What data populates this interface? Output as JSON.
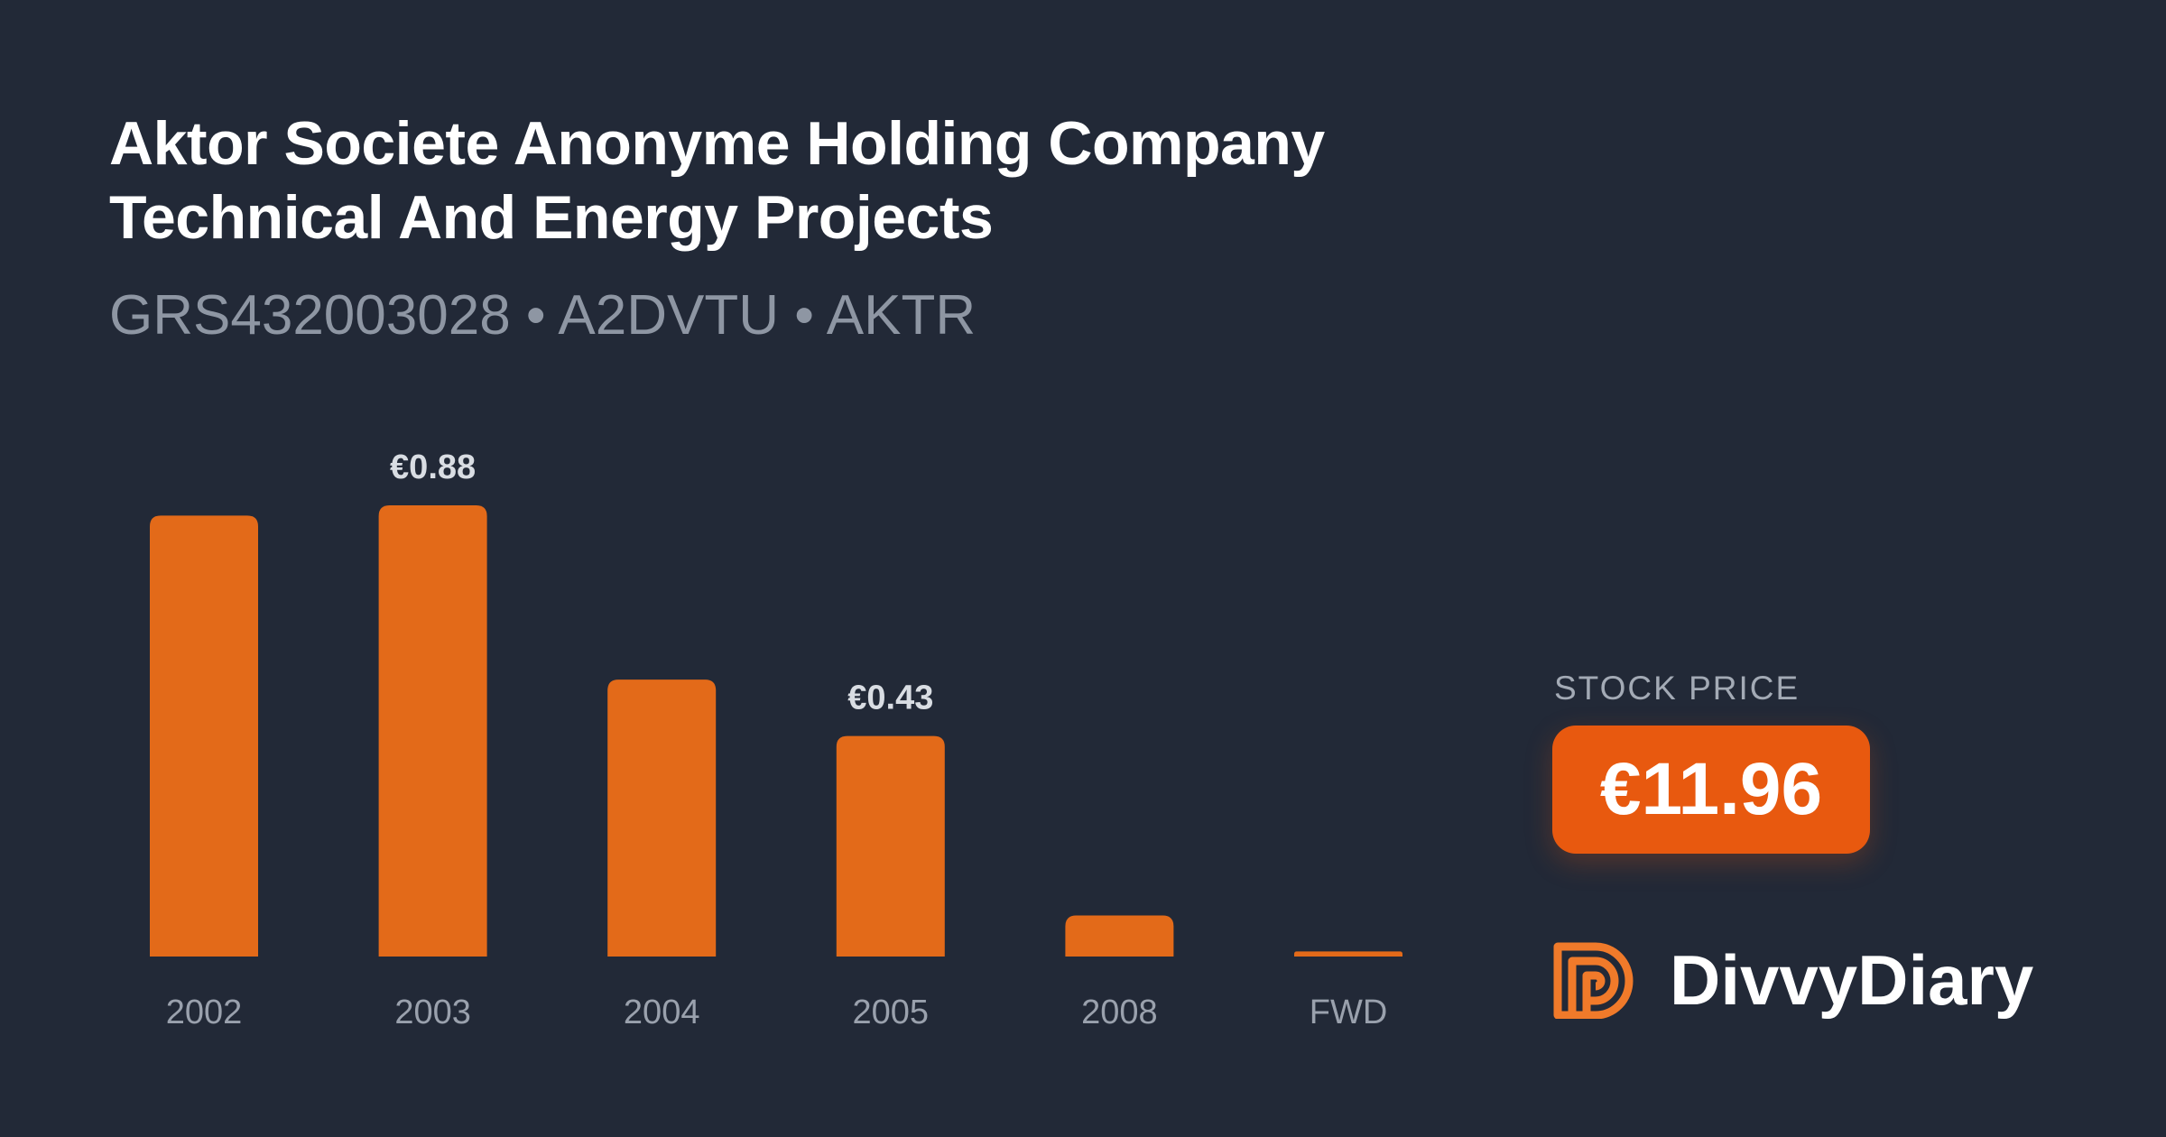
{
  "header": {
    "title_line1": "Aktor Societe Anonyme Holding Company",
    "title_line2": "Technical And Energy Projects",
    "identifiers": "GRS432003028 • A2DVTU • AKTR"
  },
  "chart_data": {
    "type": "bar",
    "categories": [
      "2002",
      "2003",
      "2004",
      "2005",
      "2008",
      "FWD"
    ],
    "values": [
      0.86,
      0.88,
      0.54,
      0.43,
      0.08,
      0.01
    ],
    "data_labels": [
      "",
      "€0.88",
      "",
      "€0.43",
      "",
      ""
    ],
    "title": "",
    "xlabel": "",
    "ylabel": "",
    "ylim": [
      0,
      0.88
    ],
    "grid": false,
    "bar_color": "#e36a19",
    "label_color": "#d9dde3",
    "tick_color": "#9aa1ad"
  },
  "stock_price": {
    "label": "STOCK PRICE",
    "value": "€11.96",
    "badge_color": "#e8590f"
  },
  "brand": {
    "name": "DivvyDiary",
    "logo_icon": "divvydiary-logo-icon",
    "logo_color": "#f07a2a"
  }
}
